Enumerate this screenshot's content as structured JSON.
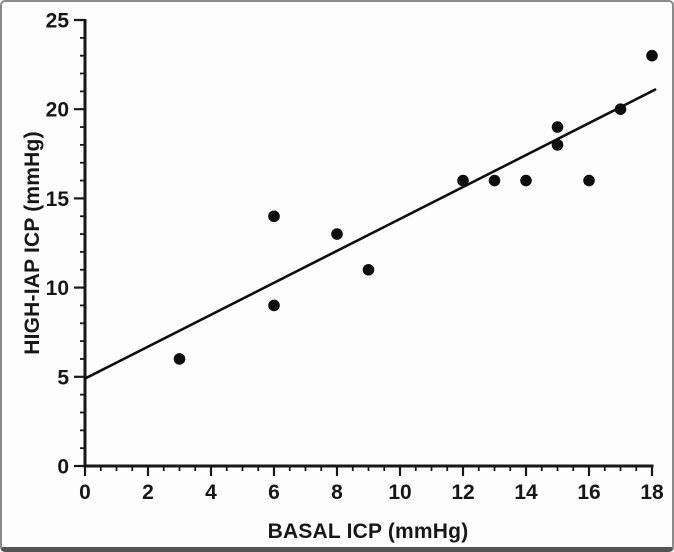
{
  "figure": {
    "description": "Scatter plot of HIGH-IAP ICP versus BASAL ICP with linear regression line"
  },
  "chart_data": {
    "type": "scatter",
    "title": "",
    "xlabel": "BASAL ICP (mmHg)",
    "ylabel": "HIGH-IAP ICP (mmHg)",
    "xlim": [
      0,
      18
    ],
    "ylim": [
      0,
      25
    ],
    "x_major_ticks": [
      0,
      2,
      4,
      6,
      8,
      10,
      12,
      14,
      16,
      18
    ],
    "x_minor_step": 0.5,
    "y_major_ticks": [
      0,
      5,
      10,
      15,
      20,
      25
    ],
    "y_minor_step": 1,
    "grid": false,
    "legend": null,
    "points": [
      [
        3,
        6
      ],
      [
        6,
        9
      ],
      [
        6,
        14
      ],
      [
        8,
        13
      ],
      [
        9,
        11
      ],
      [
        12,
        16
      ],
      [
        13,
        16
      ],
      [
        14,
        16
      ],
      [
        15,
        18
      ],
      [
        15,
        19
      ],
      [
        16,
        16
      ],
      [
        17,
        20
      ],
      [
        18,
        23
      ]
    ],
    "regression_line": {
      "x1": 0,
      "y1": 4.9,
      "x2": 18.1,
      "y2": 21.1
    },
    "point_color": "#0e0e0e",
    "line_color": "#0e0e0e",
    "axis_color": "#171717"
  }
}
